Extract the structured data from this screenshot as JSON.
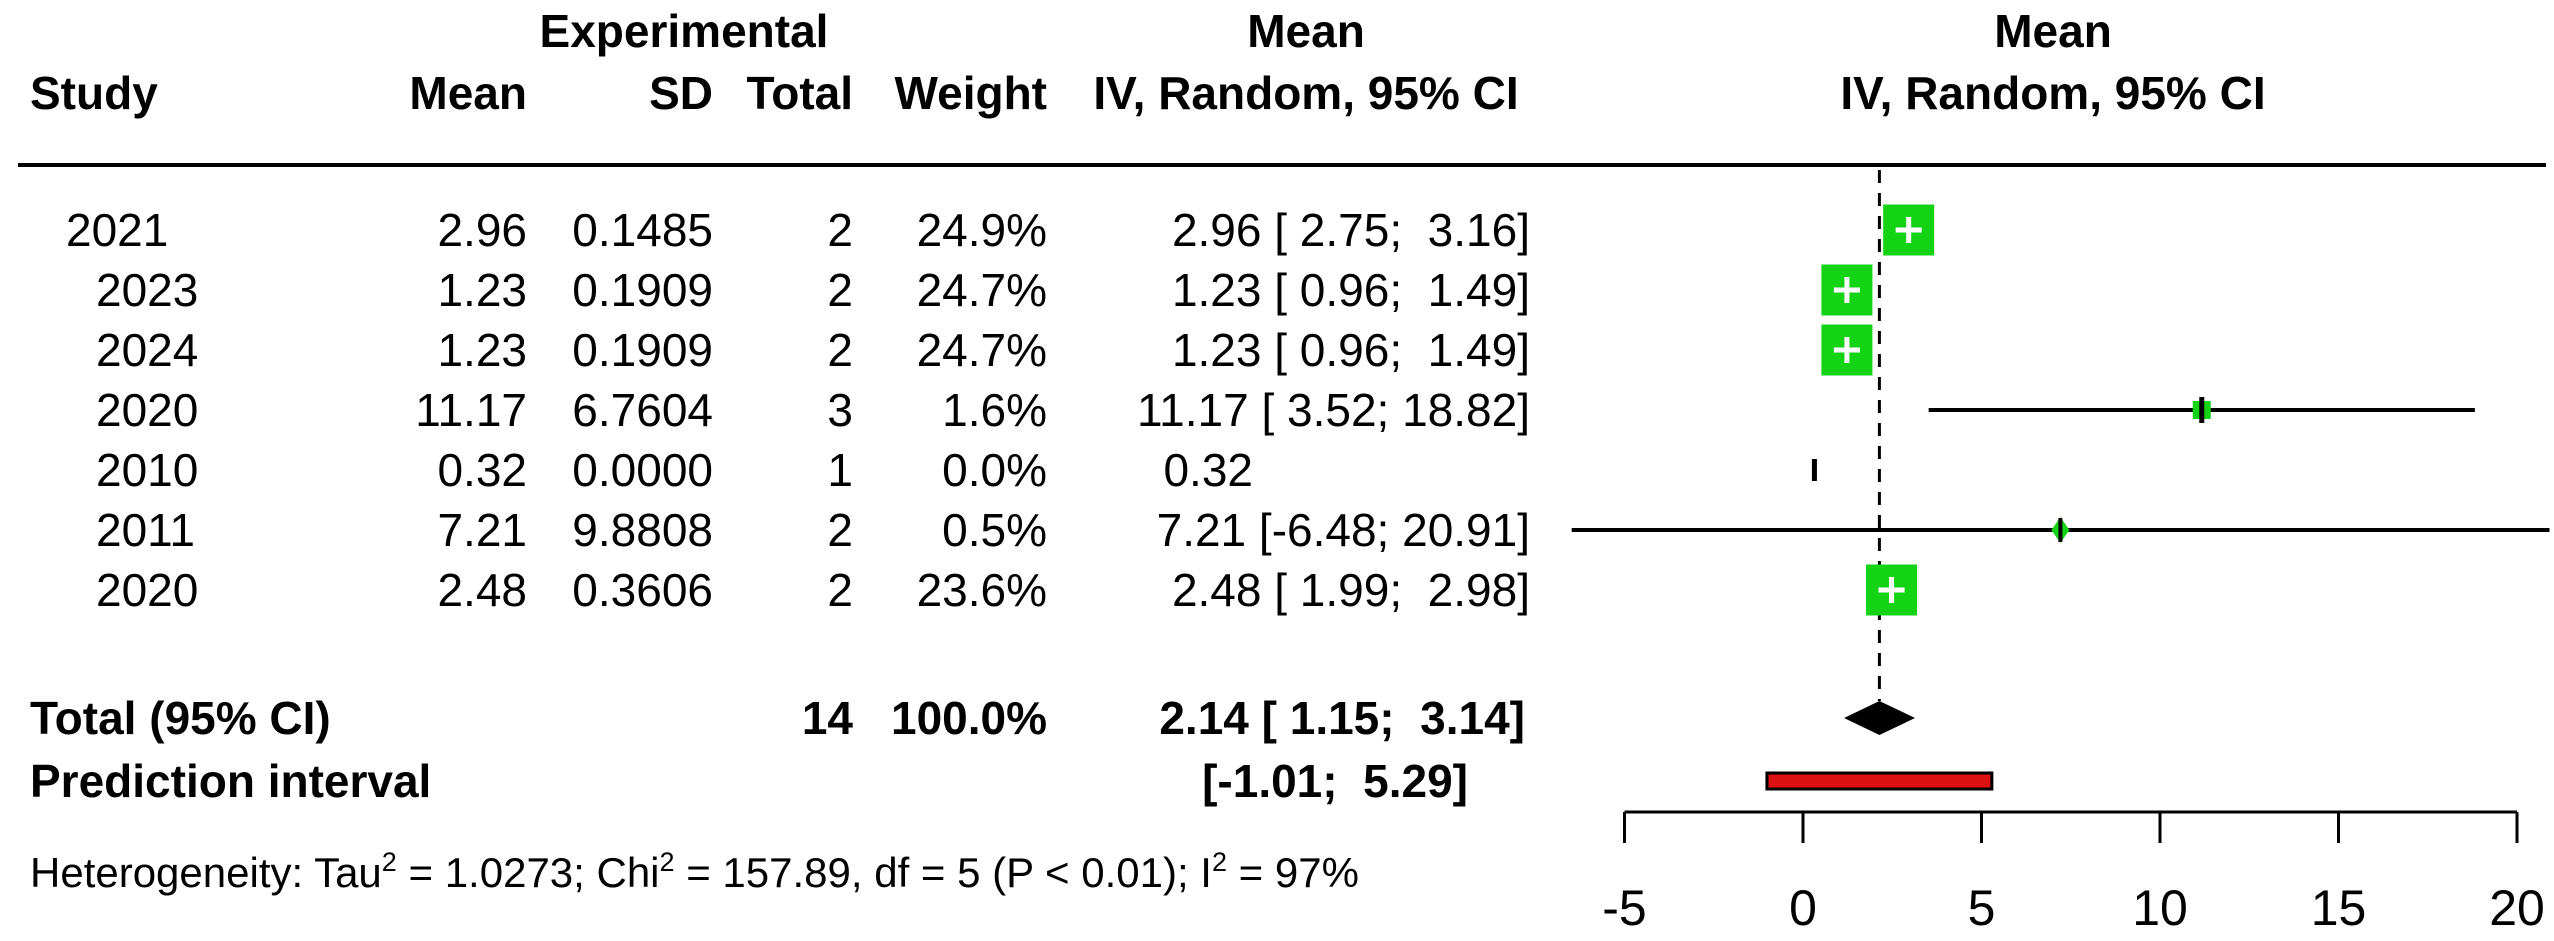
{
  "headers": {
    "study": "Study",
    "group_experimental": "Experimental",
    "col_mean": "Mean",
    "col_sd": "SD",
    "col_total": "Total",
    "col_weight": "Weight",
    "effect_col_line1": "Mean",
    "effect_col_line2": "IV, Random, 95% CI",
    "plot_col_line1": "Mean",
    "plot_col_line2": "IV, Random, 95% CI"
  },
  "chart_data": {
    "type": "forest",
    "x_axis": {
      "ticks": [
        -5,
        0,
        5,
        10,
        15,
        20
      ],
      "xlim": [
        -5,
        20
      ]
    },
    "vline_value": 2.14,
    "studies": [
      {
        "study": "2021",
        "mean": "2.96",
        "sd": "0.1485",
        "total": "2",
        "weight": "24.9%",
        "weight_value": 24.9,
        "effect": 2.96,
        "ci_low": 2.75,
        "ci_high": 3.16,
        "ci_text": "2.96 [ 2.75;  3.16]",
        "marker": "square-large"
      },
      {
        "study": "2023",
        "mean": "1.23",
        "sd": "0.1909",
        "total": "2",
        "weight": "24.7%",
        "weight_value": 24.7,
        "effect": 1.23,
        "ci_low": 0.96,
        "ci_high": 1.49,
        "ci_text": "1.23 [ 0.96;  1.49]",
        "marker": "square-large"
      },
      {
        "study": "2024",
        "mean": "1.23",
        "sd": "0.1909",
        "total": "2",
        "weight": "24.7%",
        "weight_value": 24.7,
        "effect": 1.23,
        "ci_low": 0.96,
        "ci_high": 1.49,
        "ci_text": "1.23 [ 0.96;  1.49]",
        "marker": "square-large"
      },
      {
        "study": "2020",
        "mean": "11.17",
        "sd": "6.7604",
        "total": "3",
        "weight": "1.6%",
        "weight_value": 1.6,
        "effect": 11.17,
        "ci_low": 3.52,
        "ci_high": 18.82,
        "ci_text": "11.17 [ 3.52; 18.82]",
        "marker": "square-small"
      },
      {
        "study": "2010",
        "mean": "0.32",
        "sd": "0.0000",
        "total": "1",
        "weight": "0.0%",
        "weight_value": 0.0,
        "effect": 0.32,
        "ci_low": null,
        "ci_high": null,
        "ci_text": "0.32",
        "marker": "tick"
      },
      {
        "study": "2011",
        "mean": "7.21",
        "sd": "9.8808",
        "total": "2",
        "weight": "0.5%",
        "weight_value": 0.5,
        "effect": 7.21,
        "ci_low": -6.48,
        "ci_high": 20.91,
        "ci_text": "7.21 [-6.48; 20.91]",
        "marker": "diamond-small"
      },
      {
        "study": "2020",
        "mean": "2.48",
        "sd": "0.3606",
        "total": "2",
        "weight": "23.6%",
        "weight_value": 23.6,
        "effect": 2.48,
        "ci_low": 1.99,
        "ci_high": 2.98,
        "ci_text": "2.48 [ 1.99;  2.98]",
        "marker": "square-large"
      }
    ],
    "total": {
      "label": "Total (95% CI)",
      "total": "14",
      "weight": "100.0%",
      "effect": 2.14,
      "ci_low": 1.15,
      "ci_high": 3.14,
      "ci_text": "2.14 [ 1.15;  3.14]"
    },
    "prediction": {
      "label": "Prediction interval",
      "ci_low": -1.01,
      "ci_high": 5.29,
      "ci_text": "[-1.01;  5.29]"
    },
    "heterogeneity": {
      "part1": "Heterogeneity: Tau",
      "sup1": "2",
      "part2": " = 1.0273; Chi",
      "sup2": "2",
      "part3": " = 157.89, df = 5 (P < 0.01); I",
      "sup3": "2",
      "part4": " = 97%"
    },
    "colors": {
      "square": "#14d214",
      "ci_line": "#000000",
      "diamond": "#000000",
      "prediction_fill": "#dd1111",
      "prediction_border": "#000000"
    }
  }
}
